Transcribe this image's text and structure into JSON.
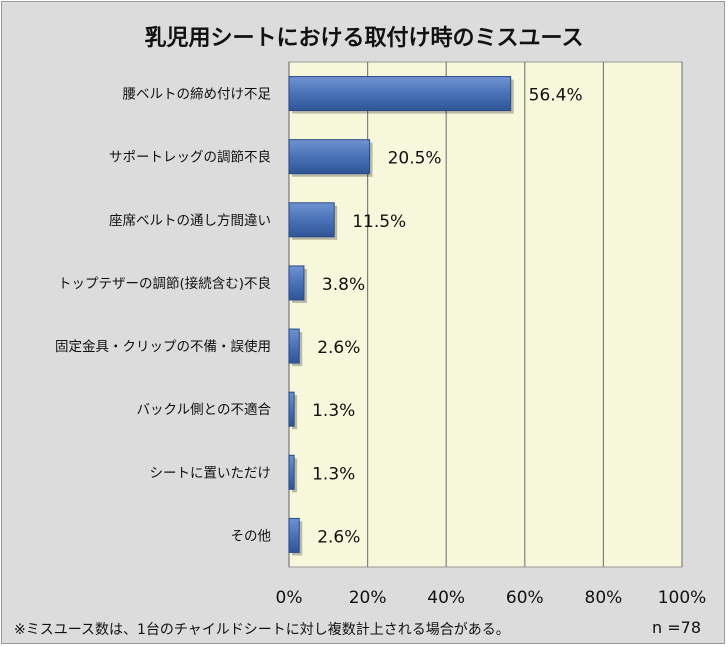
{
  "chart_data": {
    "type": "bar",
    "orientation": "horizontal",
    "title": "乳児用シートにおける取付け時のミスユース",
    "categories": [
      "腰ベルトの締め付け不足",
      "サポートレッグの調節不良",
      "座席ベルトの通し方間違い",
      "トップテザーの調節(接続含む)不良",
      "固定金具・クリップの不備・誤使用",
      "バックル側との不適合",
      "シートに置いただけ",
      "その他"
    ],
    "values": [
      56.4,
      20.5,
      11.5,
      3.8,
      2.6,
      1.3,
      1.3,
      2.6
    ],
    "value_labels": [
      "56.4%",
      "20.5%",
      "11.5%",
      "3.8%",
      "2.6%",
      "1.3%",
      "1.3%",
      "2.6%"
    ],
    "xlim": [
      0,
      100
    ],
    "x_ticks": [
      0,
      20,
      40,
      60,
      80,
      100
    ],
    "x_tick_labels": [
      "0%",
      "20%",
      "40%",
      "60%",
      "80%",
      "100%"
    ],
    "grid": true,
    "colors": {
      "bar": "#4a72b8",
      "bar_edge": "#2a4a86",
      "plot_background": "#f7f7dc",
      "frame_background": "#dcdcdc",
      "grid": "#808080"
    }
  },
  "footnote": "※ミスユース数は、1台のチャイルドシートに対し複数計上される場合がある。",
  "sample_size": "n =78"
}
